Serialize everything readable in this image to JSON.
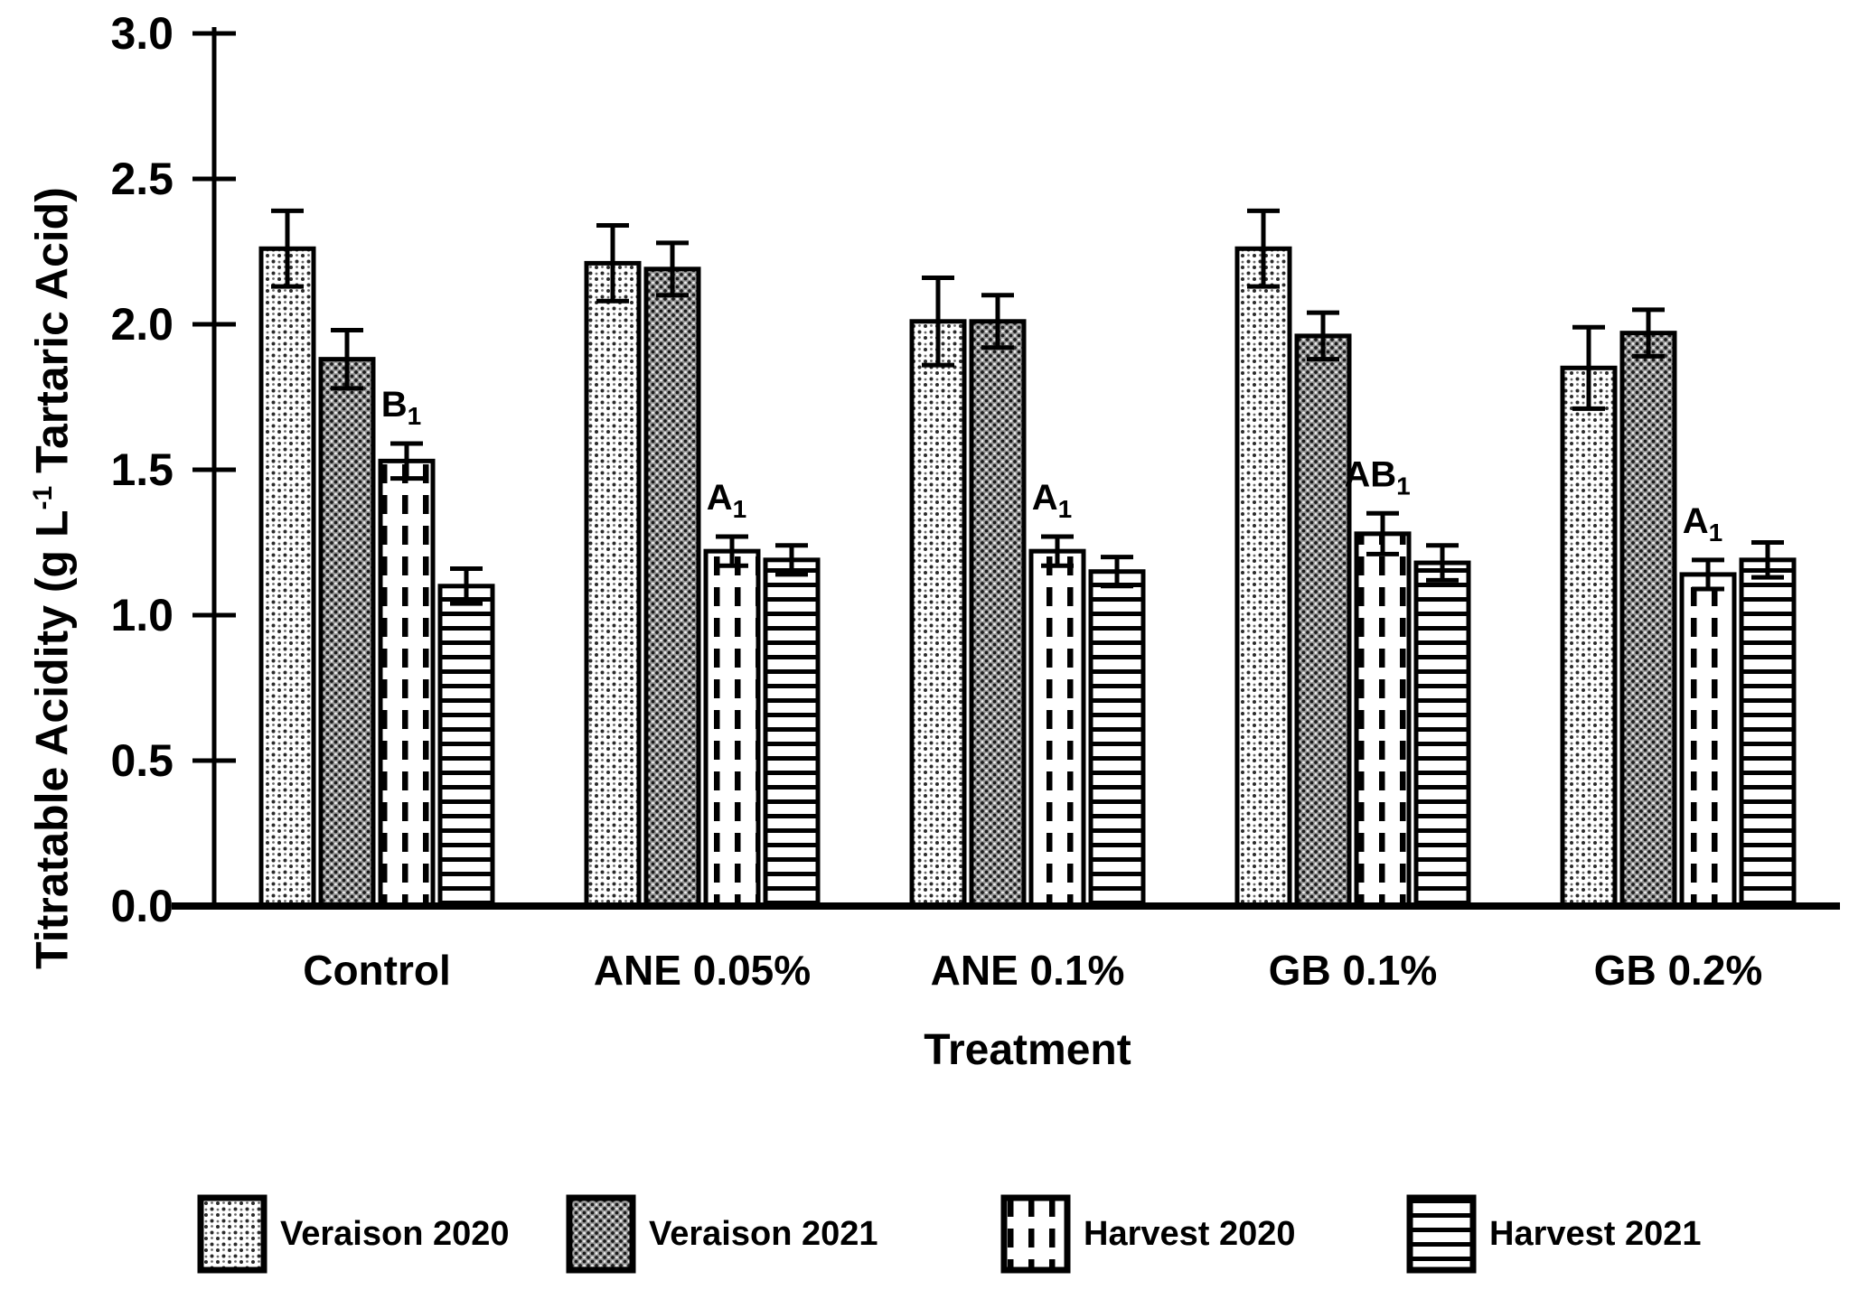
{
  "chart": {
    "y_axis": {
      "label_prefix": "Titratable Acidity (g L",
      "label_sup": "-1",
      "label_suffix": " Tartaric Acid)",
      "tick_labels": [
        "0.0",
        "0.5",
        "1.0",
        "1.5",
        "2.0",
        "2.5",
        "3.0"
      ],
      "tick_values": [
        0,
        0.5,
        1,
        1.5,
        2,
        2.5,
        3
      ]
    },
    "x_axis": {
      "title": "Treatment"
    }
  },
  "chart_data": {
    "type": "bar",
    "title": "",
    "xlabel": "Treatment",
    "ylabel": "Titratable Acidity (g L-1 Tartaric Acid)",
    "ylim": [
      0,
      3.0
    ],
    "grid": false,
    "legend_position": "bottom",
    "categories": [
      "Control",
      "ANE 0.05%",
      "ANE 0.1%",
      "GB 0.1%",
      "GB 0.2%"
    ],
    "series": [
      {
        "name": "Veraison 2020",
        "pattern": "pat-dots-light",
        "values": [
          2.26,
          2.21,
          2.01,
          2.26,
          1.85
        ],
        "errors": [
          0.13,
          0.13,
          0.15,
          0.13,
          0.14
        ]
      },
      {
        "name": "Veraison 2021",
        "pattern": "pat-dots-dark",
        "values": [
          1.88,
          2.19,
          2.01,
          1.96,
          1.97
        ],
        "errors": [
          0.1,
          0.09,
          0.09,
          0.08,
          0.08
        ]
      },
      {
        "name": "Harvest 2020",
        "pattern": "pat-dash-vert",
        "values": [
          1.53,
          1.22,
          1.22,
          1.28,
          1.14
        ],
        "errors": [
          0.06,
          0.05,
          0.05,
          0.07,
          0.05
        ]
      },
      {
        "name": "Harvest 2021",
        "pattern": "pat-horiz-lines",
        "values": [
          1.1,
          1.19,
          1.15,
          1.18,
          1.19
        ],
        "errors": [
          0.06,
          0.05,
          0.05,
          0.06,
          0.06
        ]
      }
    ],
    "annotations": [
      {
        "category": "Control",
        "series": "Harvest 2020",
        "text": "B",
        "sub": "1"
      },
      {
        "category": "ANE 0.05%",
        "series": "Harvest 2020",
        "text": "A",
        "sub": "1"
      },
      {
        "category": "ANE 0.1%",
        "series": "Harvest 2020",
        "text": "A",
        "sub": "1"
      },
      {
        "category": "GB 0.1%",
        "series": "Harvest 2020",
        "text": "AB",
        "sub": "1"
      },
      {
        "category": "GB 0.2%",
        "series": "Harvest 2020",
        "text": "A",
        "sub": "1"
      }
    ]
  },
  "legend": {
    "items": [
      {
        "label": "Veraison 2020",
        "pattern": "pat-dots-light"
      },
      {
        "label": "Veraison 2021",
        "pattern": "pat-dots-dark"
      },
      {
        "label": "Harvest 2020",
        "pattern": "pat-dash-vert"
      },
      {
        "label": "Harvest 2021",
        "pattern": "pat-horiz-lines"
      }
    ]
  },
  "colors": {
    "ink": "#000000",
    "background": "#ffffff",
    "dark_dot_fill": "#969696"
  }
}
